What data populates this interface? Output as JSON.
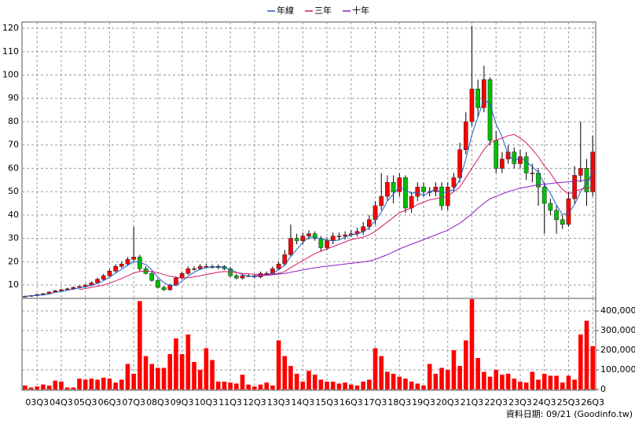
{
  "chart_data": {
    "type": "candlestick",
    "categories": [
      null,
      null,
      "03Q3",
      null,
      null,
      null,
      "04Q3",
      null,
      null,
      null,
      "05Q3",
      null,
      null,
      null,
      "06Q3",
      null,
      null,
      null,
      "07Q3",
      null,
      null,
      null,
      "08Q3",
      null,
      null,
      null,
      "09Q3",
      null,
      null,
      null,
      "10Q3",
      null,
      null,
      null,
      "11Q3",
      null,
      null,
      null,
      "12Q3",
      null,
      null,
      null,
      "13Q3",
      null,
      null,
      null,
      "14Q3",
      null,
      null,
      null,
      "15Q3",
      null,
      null,
      null,
      "16Q3",
      null,
      null,
      null,
      "17Q3",
      null,
      null,
      null,
      "18Q3",
      null,
      null,
      null,
      "19Q3",
      null,
      null,
      null,
      "20Q3",
      null,
      null,
      null,
      "21Q3",
      null,
      null,
      null,
      "22Q3",
      null,
      null,
      null,
      "23Q3",
      null,
      null,
      null,
      "24Q3",
      null,
      null,
      null,
      "25Q3",
      null,
      null,
      null,
      "26Q3"
    ],
    "open": [
      5.0,
      5.2,
      5.5,
      6,
      6.3,
      7,
      7.6,
      8,
      8.4,
      9,
      9.4,
      10,
      11,
      12.5,
      14,
      16,
      18,
      19,
      21,
      22,
      17,
      15,
      12,
      9,
      8,
      10,
      13,
      15,
      17,
      17,
      18,
      18,
      17.5,
      18,
      17,
      14,
      13,
      14,
      14,
      13.5,
      15,
      15,
      17,
      19,
      23,
      30,
      29,
      31,
      32,
      30,
      26,
      29,
      31,
      31,
      31.5,
      32,
      33,
      35,
      38,
      44,
      48,
      54,
      50,
      56,
      43,
      48,
      52,
      50,
      50,
      52,
      44,
      52,
      56,
      68,
      80,
      94,
      86,
      98,
      72,
      60,
      64,
      67,
      62,
      65,
      58,
      58,
      52,
      45,
      42,
      38,
      36,
      47,
      57,
      60,
      50
    ],
    "high": [
      5.4,
      5.7,
      6.2,
      6.6,
      7.3,
      7.9,
      8.4,
      8.8,
      9.4,
      9.8,
      10.5,
      11.6,
      13.2,
      14.8,
      16.8,
      19,
      20,
      22,
      35,
      23,
      18,
      15.8,
      12.6,
      9.6,
      10.6,
      13.8,
      15.8,
      18,
      18,
      19,
      19,
      18.8,
      18.9,
      18.5,
      17.8,
      14.8,
      14.8,
      14.8,
      14.6,
      15.8,
      15.8,
      18,
      20,
      25,
      36,
      32,
      32.5,
      33.5,
      33,
      31,
      30.5,
      32.5,
      32.5,
      33,
      33.5,
      34.5,
      37,
      40,
      46,
      58,
      57,
      57,
      58,
      57,
      50,
      54,
      54,
      52,
      54,
      54,
      54,
      58,
      71,
      84,
      121,
      98,
      104,
      99,
      76,
      67,
      70,
      69,
      68,
      67,
      62,
      60,
      54,
      47,
      44,
      40,
      50,
      61,
      80,
      64,
      74
    ],
    "low": [
      4.7,
      4.9,
      5.2,
      5.7,
      6,
      6.7,
      7.3,
      7.7,
      8,
      8.6,
      9,
      9.6,
      10.5,
      12,
      13.5,
      15.3,
      17.2,
      18.2,
      20,
      16,
      14.5,
      11.5,
      8.5,
      7.5,
      7.6,
      9.5,
      12.4,
      14.4,
      16.2,
      16.4,
      17.3,
      17,
      16.8,
      16.4,
      13.4,
      12.4,
      12.4,
      13.4,
      12.9,
      12.9,
      14.3,
      14.4,
      16.3,
      18.2,
      22,
      27.5,
      27.5,
      29.5,
      29,
      24.5,
      25,
      27.5,
      29.5,
      29.5,
      30.5,
      30.8,
      31.5,
      33.5,
      36,
      42,
      46,
      45,
      48,
      41,
      41,
      46,
      48,
      48,
      48,
      42,
      42,
      50,
      54,
      66,
      78,
      82,
      84,
      70,
      58,
      58,
      62,
      60,
      60,
      55,
      54,
      44,
      32,
      40,
      32,
      34,
      35,
      45,
      54,
      44,
      48
    ],
    "close": [
      5.2,
      5.5,
      6,
      6.3,
      7,
      7.6,
      8,
      8.4,
      9,
      9.4,
      10,
      11,
      12.5,
      14,
      16,
      18,
      19,
      21,
      22,
      17,
      15,
      12,
      9,
      8,
      10,
      13,
      15,
      17,
      17,
      18,
      18,
      17.5,
      18,
      17,
      14,
      13,
      14,
      14,
      13.5,
      15,
      15,
      17,
      19,
      23,
      30,
      29,
      31,
      32,
      30,
      26,
      29,
      31,
      31,
      31.5,
      32,
      33,
      35,
      38,
      44,
      48,
      54,
      50,
      56,
      43,
      48,
      52,
      50,
      50,
      52,
      44,
      52,
      56,
      68,
      80,
      94,
      86,
      98,
      72,
      60,
      64,
      67,
      62,
      65,
      58,
      58,
      52,
      45,
      42,
      38,
      36,
      47,
      57,
      60,
      50,
      67
    ],
    "up_color": "#ff0000",
    "down_color": "#00c000",
    "series": [
      {
        "name": "年線",
        "color": "#1f5fc8",
        "values": [
          5.2,
          5.35,
          5.6,
          5.75,
          6.2,
          6.85,
          7.2,
          7.75,
          8.25,
          8.7,
          9.2,
          9.85,
          10.7,
          11.9,
          13.4,
          15.1,
          16.75,
          18.5,
          20,
          19.75,
          18.75,
          16.5,
          13.25,
          11,
          9.75,
          10,
          11.75,
          13.75,
          15.5,
          16.75,
          17.5,
          17.6,
          17.9,
          17.6,
          16.6,
          15.5,
          14.5,
          13.75,
          13.6,
          14.1,
          14.4,
          15.1,
          16.5,
          18.5,
          22.25,
          25.25,
          28.25,
          30.5,
          30.5,
          29.75,
          29.25,
          29,
          29.25,
          30.6,
          31.4,
          31.9,
          32.9,
          34.6,
          37.6,
          41.25,
          46,
          49,
          52,
          50.75,
          49.25,
          49.75,
          48.25,
          50,
          51,
          49.5,
          50,
          51,
          55,
          64,
          74.5,
          82,
          89.5,
          87.5,
          79,
          73.5,
          65.75,
          63.25,
          64.5,
          63,
          60.75,
          58.25,
          53.25,
          49.25,
          44.25,
          40.25,
          40.75,
          44.5,
          50,
          53.5,
          58.5
        ]
      },
      {
        "name": "三年",
        "color": "#d8186e",
        "values": [
          null,
          null,
          null,
          null,
          null,
          null,
          null,
          null,
          null,
          8,
          8.5,
          9,
          9.5,
          10,
          10.8,
          11.8,
          12.8,
          14,
          15.2,
          15.8,
          16,
          15.8,
          15.3,
          14.5,
          13.8,
          13.3,
          13,
          13.1,
          13.5,
          14,
          14.5,
          15,
          15.5,
          15.8,
          15.6,
          15.3,
          15,
          14.8,
          14.6,
          14.5,
          14.5,
          14.6,
          15,
          15.8,
          17.5,
          19,
          20.5,
          22,
          23.5,
          24.5,
          25.5,
          26.5,
          27.5,
          28.5,
          29.5,
          30,
          30.5,
          31.5,
          33,
          35,
          37,
          39,
          41,
          42,
          43,
          44.5,
          45.5,
          46.5,
          47,
          47.5,
          48,
          50,
          52,
          56,
          60,
          64,
          68,
          71,
          72,
          73,
          74,
          74.5,
          73,
          71,
          68,
          65,
          61,
          58,
          54,
          51,
          49,
          50,
          51,
          51.5,
          52
        ]
      },
      {
        "name": "十年",
        "color": "#8a1ec8",
        "values": [
          null,
          null,
          null,
          null,
          null,
          null,
          null,
          null,
          null,
          null,
          null,
          null,
          null,
          null,
          null,
          null,
          null,
          null,
          null,
          null,
          null,
          null,
          null,
          null,
          null,
          null,
          null,
          null,
          null,
          null,
          null,
          null,
          null,
          null,
          null,
          null,
          null,
          null,
          14,
          14.1,
          14.2,
          14.4,
          14.7,
          15,
          15.5,
          16,
          16.5,
          17,
          17.4,
          17.8,
          18.1,
          18.4,
          18.7,
          19,
          19.3,
          19.6,
          19.9,
          20.3,
          21,
          22,
          23,
          24.2,
          25.5,
          26.5,
          27.5,
          28.5,
          29.5,
          30.5,
          31.5,
          32.5,
          33.5,
          35,
          36.5,
          38.5,
          40.5,
          43,
          45,
          47,
          48,
          49,
          50,
          50.8,
          51.5,
          52,
          52.5,
          53,
          53.2,
          53.5,
          53.8,
          54,
          54.2,
          54.5,
          54.7,
          55,
          55.2
        ]
      }
    ],
    "ylim": [
      4.3,
      122.7
    ],
    "yticks": [
      10,
      20,
      30,
      40,
      50,
      60,
      70,
      80,
      90,
      100,
      110,
      120
    ],
    "grid": true,
    "legend": "top",
    "volume": {
      "type": "bar",
      "color": "#ff0000",
      "values": [
        20000,
        10000,
        15000,
        25000,
        20000,
        45000,
        40000,
        10000,
        10000,
        55000,
        50000,
        55000,
        50000,
        60000,
        55000,
        35000,
        50000,
        130000,
        80000,
        450000,
        170000,
        130000,
        110000,
        110000,
        180000,
        260000,
        180000,
        280000,
        140000,
        100000,
        210000,
        150000,
        40000,
        40000,
        35000,
        30000,
        75000,
        25000,
        15000,
        25000,
        35000,
        20000,
        250000,
        170000,
        120000,
        80000,
        40000,
        95000,
        75000,
        50000,
        40000,
        40000,
        30000,
        35000,
        25000,
        20000,
        40000,
        50000,
        210000,
        170000,
        90000,
        80000,
        65000,
        55000,
        40000,
        30000,
        20000,
        130000,
        80000,
        110000,
        100000,
        200000,
        120000,
        250000,
        460000,
        160000,
        90000,
        65000,
        100000,
        75000,
        80000,
        55000,
        40000,
        35000,
        90000,
        50000,
        80000,
        70000,
        70000,
        35000,
        70000,
        50000,
        280000,
        350000,
        220000
      ],
      "ylim": [
        0,
        464000
      ],
      "yticks": [
        0,
        {
          "value": 100000,
          "label": "100,000"
        },
        {
          "value": 200000,
          "label": "200,000"
        },
        {
          "value": 300000,
          "label": "300,000"
        },
        {
          "value": 400000,
          "label": "400,000"
        }
      ]
    },
    "footer": "資料日期: 09/21 (Goodinfo.tw)"
  }
}
